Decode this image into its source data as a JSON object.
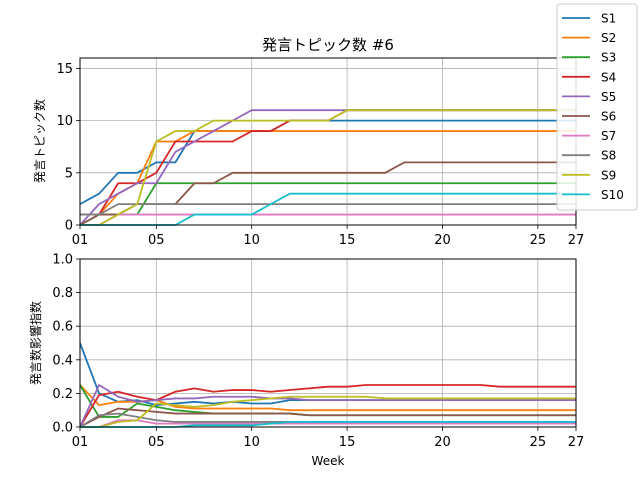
{
  "chart_data": [
    {
      "type": "line",
      "title": "発言トピック数 #6",
      "xlabel": "",
      "ylabel": "発言トピック数",
      "xlim": [
        1,
        27
      ],
      "ylim": [
        0,
        16
      ],
      "grid": true,
      "x_ticks": [
        1,
        5,
        10,
        15,
        20,
        25,
        27
      ],
      "x_tick_labels": [
        "01",
        "05",
        "10",
        "15",
        "20",
        "25",
        "27"
      ],
      "y_ticks": [
        0,
        5,
        10,
        15
      ],
      "y_tick_labels": [
        "0",
        "5",
        "10",
        "15"
      ],
      "x": [
        1,
        2,
        3,
        4,
        5,
        6,
        7,
        8,
        9,
        10,
        11,
        12,
        13,
        14,
        15,
        16,
        17,
        18,
        19,
        20,
        21,
        22,
        23,
        24,
        25,
        26,
        27
      ],
      "series": [
        {
          "name": "S1",
          "color": "#1f77b4",
          "values": [
            2,
            3,
            5,
            5,
            6,
            6,
            9,
            9,
            9,
            9,
            9,
            10,
            10,
            10,
            10,
            10,
            10,
            10,
            10,
            10,
            10,
            10,
            10,
            10,
            10,
            10,
            10
          ]
        },
        {
          "name": "S2",
          "color": "#ff7f0e",
          "values": [
            1,
            1,
            3,
            4,
            8,
            8,
            9,
            9,
            9,
            9,
            9,
            9,
            9,
            9,
            9,
            9,
            9,
            9,
            9,
            9,
            9,
            9,
            9,
            9,
            9,
            9,
            9
          ]
        },
        {
          "name": "S3",
          "color": "#2ca02c",
          "values": [
            0,
            1,
            1,
            1,
            4,
            4,
            4,
            4,
            4,
            4,
            4,
            4,
            4,
            4,
            4,
            4,
            4,
            4,
            4,
            4,
            4,
            4,
            4,
            4,
            4,
            4,
            4
          ]
        },
        {
          "name": "S4",
          "color": "#d62728",
          "values": [
            1,
            1,
            4,
            4,
            5,
            8,
            8,
            8,
            8,
            9,
            9,
            10,
            10,
            10,
            11,
            11,
            11,
            11,
            11,
            11,
            11,
            11,
            11,
            11,
            11,
            11,
            11
          ]
        },
        {
          "name": "S5",
          "color": "#9467bd",
          "values": [
            0,
            2,
            3,
            4,
            4,
            7,
            8,
            9,
            10,
            11,
            11,
            11,
            11,
            11,
            11,
            11,
            11,
            11,
            11,
            11,
            11,
            11,
            11,
            11,
            11,
            11,
            11
          ]
        },
        {
          "name": "S6",
          "color": "#8c564b",
          "values": [
            0,
            1,
            1,
            2,
            2,
            2,
            4,
            4,
            5,
            5,
            5,
            5,
            5,
            5,
            5,
            5,
            5,
            6,
            6,
            6,
            6,
            6,
            6,
            6,
            6,
            6,
            6
          ]
        },
        {
          "name": "S7",
          "color": "#e377c2",
          "values": [
            0,
            0,
            1,
            1,
            1,
            1,
            1,
            1,
            1,
            1,
            1,
            1,
            1,
            1,
            1,
            1,
            1,
            1,
            1,
            1,
            1,
            1,
            1,
            1,
            1,
            1,
            1
          ]
        },
        {
          "name": "S8",
          "color": "#7f7f7f",
          "values": [
            1,
            1,
            2,
            2,
            2,
            2,
            2,
            2,
            2,
            2,
            2,
            2,
            2,
            2,
            2,
            2,
            2,
            2,
            2,
            2,
            2,
            2,
            2,
            2,
            2,
            2,
            2
          ]
        },
        {
          "name": "S9",
          "color": "#bcbd22",
          "values": [
            0,
            0,
            1,
            2,
            8,
            9,
            9,
            10,
            10,
            10,
            10,
            10,
            10,
            10,
            11,
            11,
            11,
            11,
            11,
            11,
            11,
            11,
            11,
            11,
            11,
            11,
            11
          ]
        },
        {
          "name": "S10",
          "color": "#17becf",
          "values": [
            0,
            0,
            0,
            0,
            0,
            0,
            1,
            1,
            1,
            1,
            2,
            3,
            3,
            3,
            3,
            3,
            3,
            3,
            3,
            3,
            3,
            3,
            3,
            3,
            3,
            3,
            3
          ]
        }
      ]
    },
    {
      "type": "line",
      "title": "",
      "xlabel": "Week",
      "ylabel": "発言数影響指数",
      "xlim": [
        1,
        27
      ],
      "ylim": [
        0,
        1.0
      ],
      "grid": true,
      "x_ticks": [
        1,
        5,
        10,
        15,
        20,
        25,
        27
      ],
      "x_tick_labels": [
        "01",
        "05",
        "10",
        "15",
        "20",
        "25",
        "27"
      ],
      "y_ticks": [
        0.0,
        0.2,
        0.4,
        0.6,
        0.8,
        1.0
      ],
      "y_tick_labels": [
        "0.0",
        "0.2",
        "0.4",
        "0.6",
        "0.8",
        "1.0"
      ],
      "x": [
        1,
        2,
        3,
        4,
        5,
        6,
        7,
        8,
        9,
        10,
        11,
        12,
        13,
        14,
        15,
        16,
        17,
        18,
        19,
        20,
        21,
        22,
        23,
        24,
        25,
        26,
        27
      ],
      "series": [
        {
          "name": "S1",
          "color": "#1f77b4",
          "values": [
            0.5,
            0.2,
            0.15,
            0.16,
            0.13,
            0.14,
            0.15,
            0.14,
            0.15,
            0.14,
            0.14,
            0.16,
            0.16,
            0.16,
            0.16,
            0.16,
            0.16,
            0.16,
            0.16,
            0.16,
            0.16,
            0.16,
            0.16,
            0.16,
            0.16,
            0.16,
            0.16
          ]
        },
        {
          "name": "S2",
          "color": "#ff7f0e",
          "values": [
            0.25,
            0.13,
            0.15,
            0.15,
            0.16,
            0.12,
            0.11,
            0.11,
            0.11,
            0.11,
            0.11,
            0.1,
            0.1,
            0.1,
            0.1,
            0.1,
            0.1,
            0.1,
            0.1,
            0.1,
            0.1,
            0.1,
            0.1,
            0.1,
            0.1,
            0.1,
            0.1
          ]
        },
        {
          "name": "S3",
          "color": "#2ca02c",
          "values": [
            0.25,
            0.06,
            0.06,
            0.14,
            0.12,
            0.1,
            0.09,
            0.08,
            0.08,
            0.08,
            0.08,
            0.08,
            0.07,
            0.07,
            0.07,
            0.07,
            0.07,
            0.07,
            0.07,
            0.07,
            0.07,
            0.07,
            0.07,
            0.07,
            0.07,
            0.07,
            0.07
          ]
        },
        {
          "name": "S4",
          "color": "#d62728",
          "values": [
            0.0,
            0.19,
            0.21,
            0.18,
            0.16,
            0.21,
            0.23,
            0.21,
            0.22,
            0.22,
            0.21,
            0.22,
            0.23,
            0.24,
            0.24,
            0.25,
            0.25,
            0.25,
            0.25,
            0.25,
            0.25,
            0.25,
            0.24,
            0.24,
            0.24,
            0.24,
            0.24
          ]
        },
        {
          "name": "S5",
          "color": "#9467bd",
          "values": [
            0.0,
            0.25,
            0.18,
            0.15,
            0.16,
            0.17,
            0.17,
            0.18,
            0.18,
            0.18,
            0.17,
            0.17,
            0.16,
            0.16,
            0.16,
            0.16,
            0.16,
            0.16,
            0.16,
            0.16,
            0.16,
            0.16,
            0.16,
            0.16,
            0.16,
            0.16,
            0.16
          ]
        },
        {
          "name": "S6",
          "color": "#8c564b",
          "values": [
            0.0,
            0.06,
            0.11,
            0.1,
            0.09,
            0.08,
            0.08,
            0.08,
            0.08,
            0.08,
            0.08,
            0.08,
            0.07,
            0.07,
            0.07,
            0.07,
            0.07,
            0.07,
            0.07,
            0.07,
            0.07,
            0.07,
            0.07,
            0.07,
            0.07,
            0.07,
            0.07
          ]
        },
        {
          "name": "S7",
          "color": "#e377c2",
          "values": [
            0.0,
            0.0,
            0.04,
            0.04,
            0.02,
            0.02,
            0.02,
            0.02,
            0.02,
            0.02,
            0.02,
            0.02,
            0.02,
            0.02,
            0.02,
            0.02,
            0.02,
            0.02,
            0.02,
            0.02,
            0.02,
            0.02,
            0.02,
            0.02,
            0.02,
            0.02,
            0.02
          ]
        },
        {
          "name": "S8",
          "color": "#7f7f7f",
          "values": [
            0.0,
            0.07,
            0.08,
            0.06,
            0.04,
            0.03,
            0.03,
            0.03,
            0.03,
            0.03,
            0.03,
            0.03,
            0.03,
            0.03,
            0.03,
            0.03,
            0.03,
            0.03,
            0.03,
            0.03,
            0.03,
            0.03,
            0.03,
            0.03,
            0.03,
            0.03,
            0.03
          ]
        },
        {
          "name": "S9",
          "color": "#bcbd22",
          "values": [
            0.0,
            0.0,
            0.03,
            0.04,
            0.14,
            0.13,
            0.12,
            0.13,
            0.15,
            0.16,
            0.17,
            0.18,
            0.18,
            0.18,
            0.18,
            0.18,
            0.17,
            0.17,
            0.17,
            0.17,
            0.17,
            0.17,
            0.17,
            0.17,
            0.17,
            0.17,
            0.17
          ]
        },
        {
          "name": "S10",
          "color": "#17becf",
          "values": [
            0.0,
            0.0,
            0.0,
            0.0,
            0.0,
            0.0,
            0.01,
            0.01,
            0.01,
            0.01,
            0.02,
            0.03,
            0.03,
            0.03,
            0.03,
            0.03,
            0.03,
            0.03,
            0.03,
            0.03,
            0.03,
            0.03,
            0.03,
            0.03,
            0.03,
            0.03,
            0.03
          ]
        }
      ]
    }
  ],
  "legend": {
    "placement": "top-right",
    "items": [
      "S1",
      "S2",
      "S3",
      "S4",
      "S5",
      "S6",
      "S7",
      "S8",
      "S9",
      "S10"
    ]
  }
}
